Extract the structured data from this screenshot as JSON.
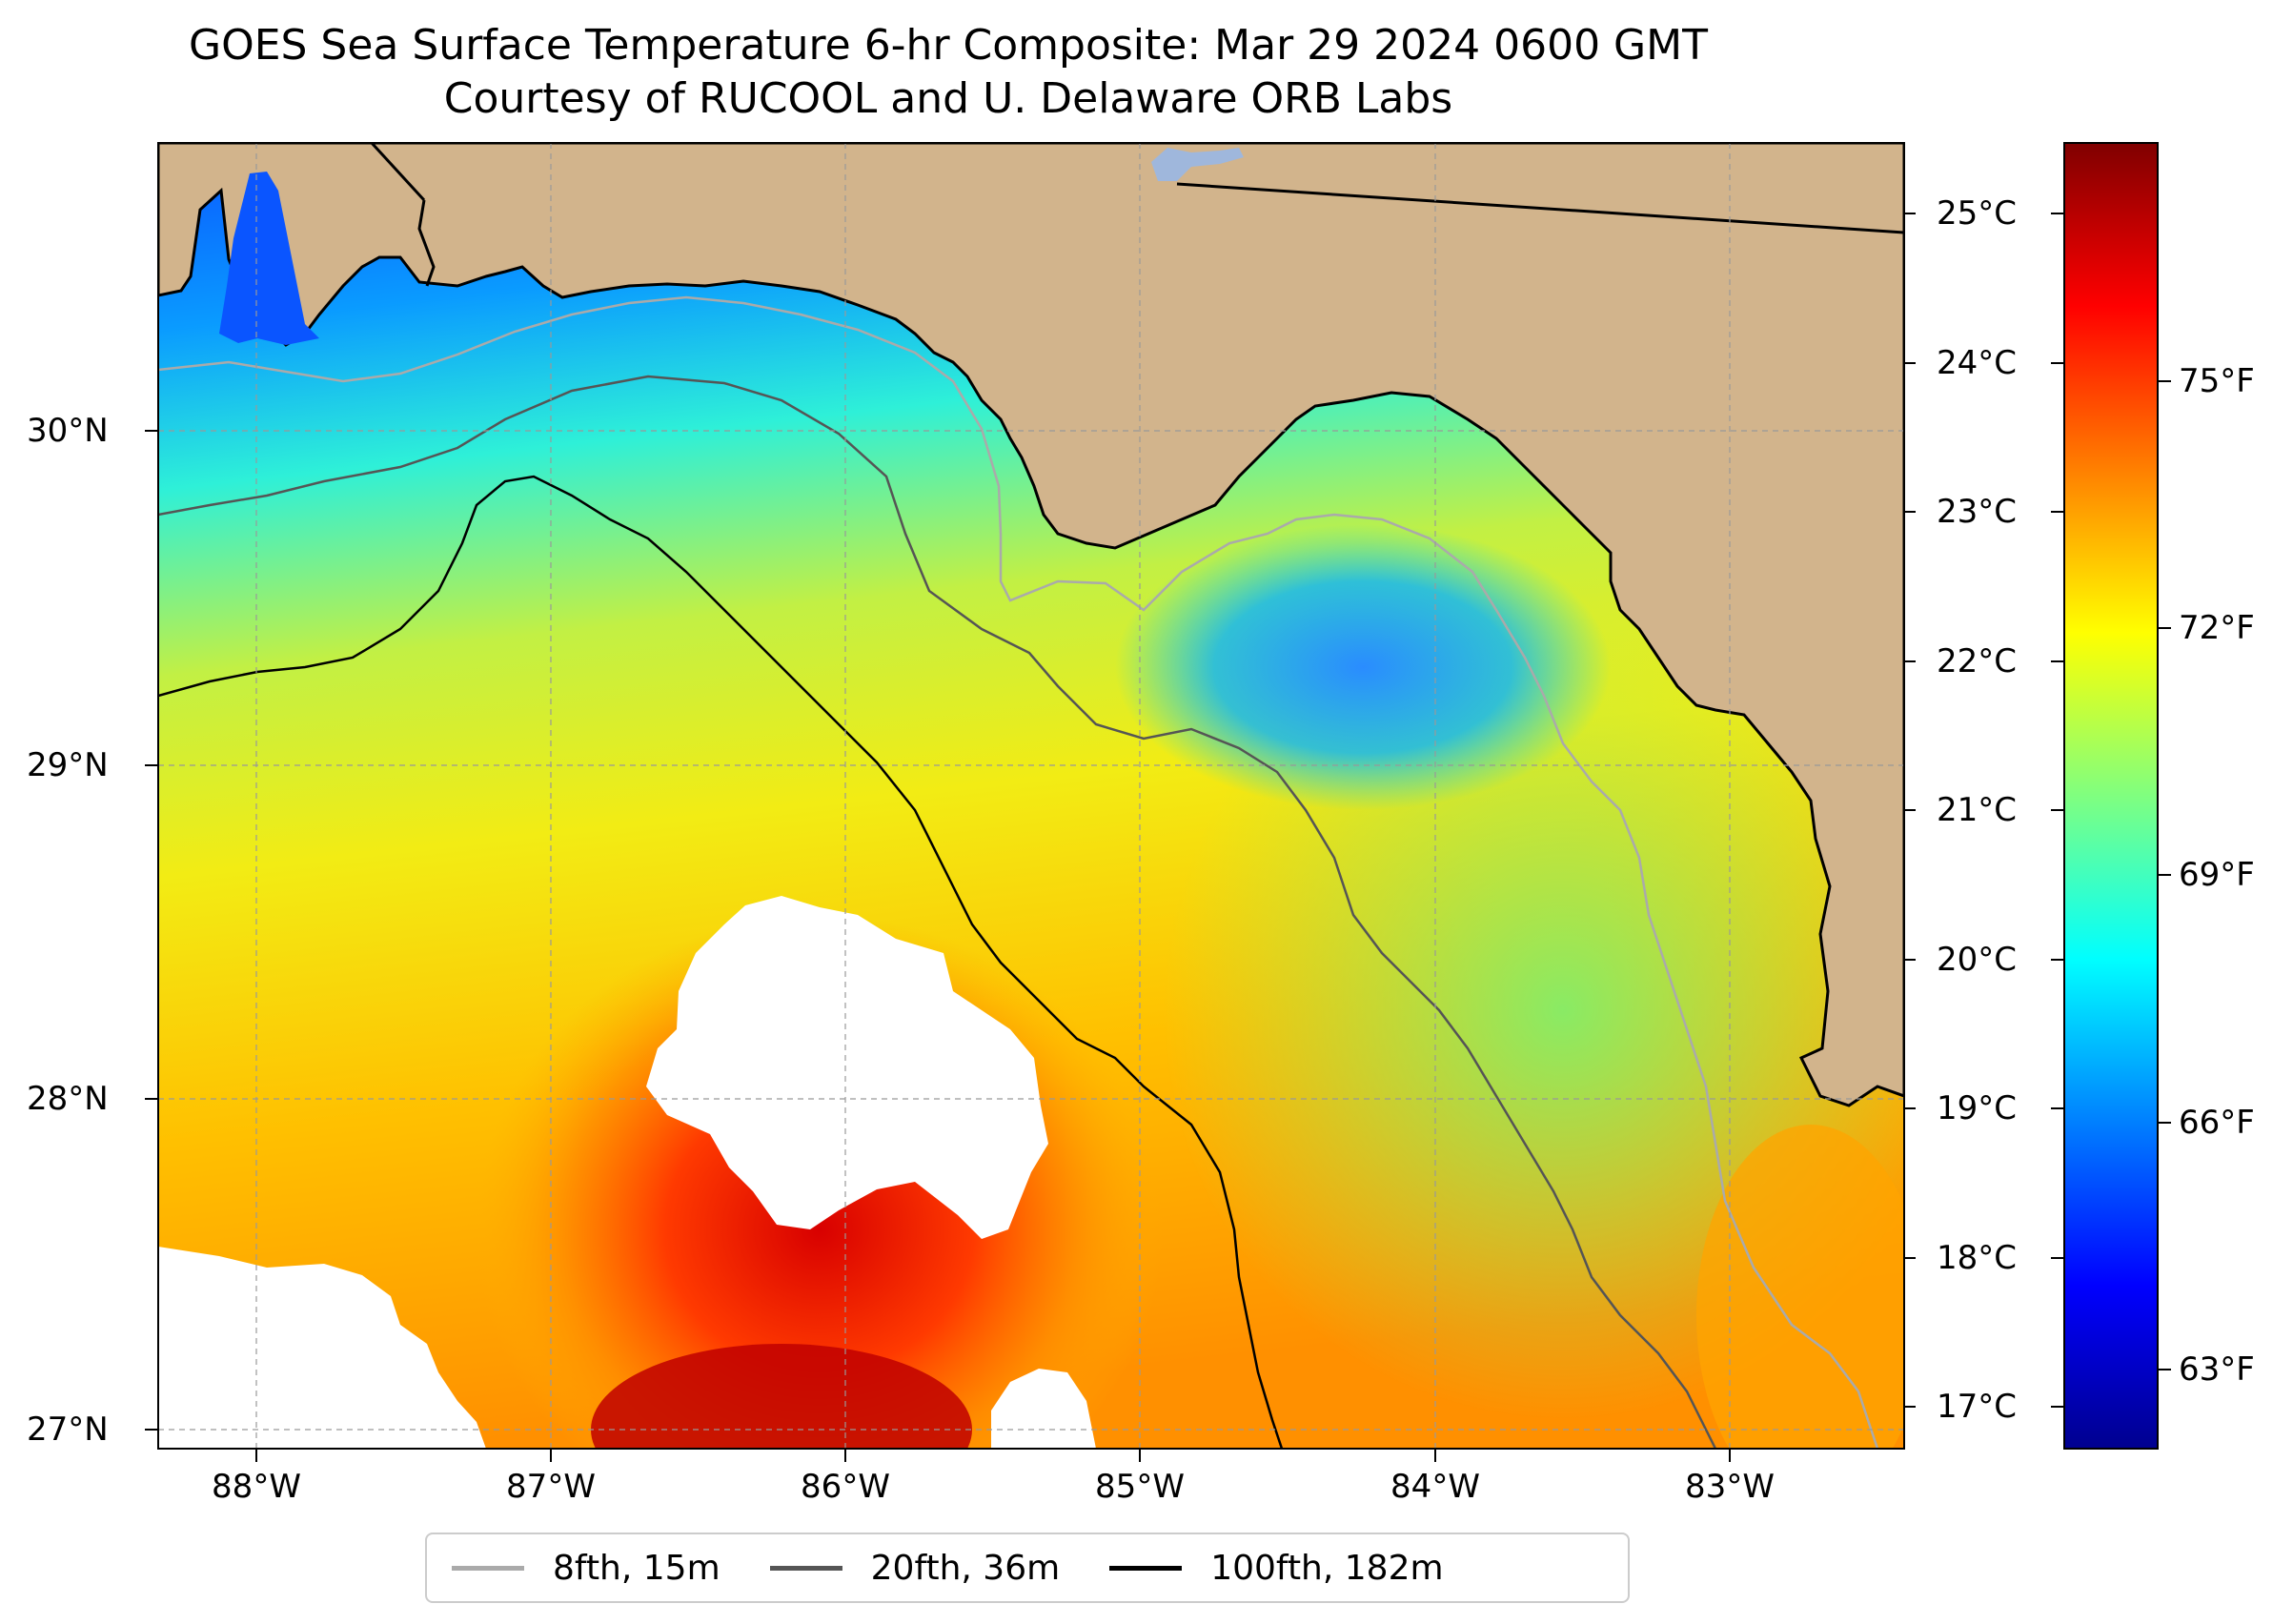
{
  "title_line1": "GOES Sea Surface Temperature 6-hr Composite: Mar 29 2024 0600 GMT",
  "title_line2": "Courtesy of RUCOOL and U. Delaware ORB Labs",
  "lon_ticks": [
    "88°W",
    "87°W",
    "86°W",
    "85°W",
    "84°W",
    "83°W"
  ],
  "lat_ticks": [
    "30°N",
    "29°N",
    "28°N",
    "27°N"
  ],
  "celsius_ticks": [
    "25°C",
    "24°C",
    "23°C",
    "22°C",
    "21°C",
    "20°C",
    "19°C",
    "18°C",
    "17°C"
  ],
  "fahrenheit_ticks": [
    "75°F",
    "72°F",
    "69°F",
    "66°F",
    "63°F"
  ],
  "legend": [
    {
      "label": "8fth, 15m",
      "color": "#aaaaaa"
    },
    {
      "label": "20fth, 36m",
      "color": "#555555"
    },
    {
      "label": "100fth, 182m",
      "color": "#000000"
    }
  ],
  "colors": {
    "land": "#d2b48c",
    "no_data": "#ffffff",
    "colormap": "jet"
  }
}
